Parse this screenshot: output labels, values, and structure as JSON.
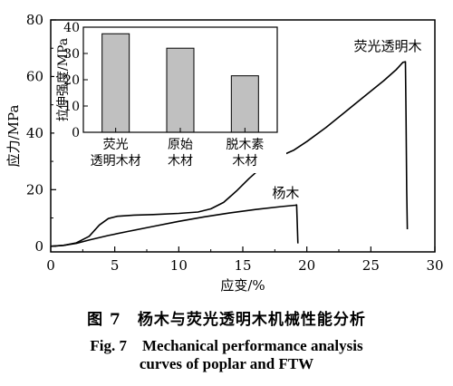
{
  "chart_data": [
    {
      "type": "line",
      "xlabel": "应变/%",
      "ylabel": "应力/MPa",
      "xlim": [
        0,
        30
      ],
      "ylim": [
        -2,
        80
      ],
      "xticks": [
        0,
        5,
        10,
        15,
        20,
        25,
        30
      ],
      "yticks": [
        0,
        20,
        40,
        60,
        80
      ],
      "grid": false,
      "series": [
        {
          "name": "荧光透明木",
          "color": "#000000",
          "points": [
            [
              0,
              0
            ],
            [
              1,
              0.3
            ],
            [
              2,
              1.2
            ],
            [
              3,
              3.5
            ],
            [
              3.8,
              7.5
            ],
            [
              4.5,
              9.8
            ],
            [
              5.2,
              10.6
            ],
            [
              6.5,
              11
            ],
            [
              8,
              11.2
            ],
            [
              10,
              11.6
            ],
            [
              11.5,
              12.1
            ],
            [
              12.5,
              13.2
            ],
            [
              13.5,
              15.5
            ],
            [
              14.5,
              19.5
            ],
            [
              15.5,
              24
            ],
            [
              16.5,
              28
            ],
            [
              17.5,
              31
            ],
            [
              19,
              34
            ],
            [
              20,
              37
            ],
            [
              21.5,
              42
            ],
            [
              23,
              47.5
            ],
            [
              24.5,
              53
            ],
            [
              26,
              58.5
            ],
            [
              27,
              62.5
            ],
            [
              27.5,
              65
            ],
            [
              27.7,
              65.2
            ],
            [
              27.75,
              45
            ],
            [
              27.8,
              20
            ],
            [
              27.85,
              6
            ]
          ]
        },
        {
          "name": "杨木",
          "color": "#000000",
          "points": [
            [
              0,
              0
            ],
            [
              1,
              0.3
            ],
            [
              2,
              1
            ],
            [
              3,
              2.2
            ],
            [
              4.5,
              3.8
            ],
            [
              6,
              5.2
            ],
            [
              8,
              7
            ],
            [
              10,
              8.8
            ],
            [
              12,
              10.4
            ],
            [
              14,
              11.8
            ],
            [
              16,
              13
            ],
            [
              18,
              14
            ],
            [
              19.1,
              14.5
            ],
            [
              19.2,
              14.6
            ],
            [
              19.25,
              8
            ],
            [
              19.3,
              1
            ]
          ]
        }
      ]
    },
    {
      "type": "bar",
      "title": "",
      "ylabel": "拉伸强度/MPa",
      "categories": [
        "荧光透明木材",
        "原始木材",
        "脱木素木材"
      ],
      "category_lines": [
        [
          "荧光",
          "透明木材"
        ],
        [
          "原始",
          "木材"
        ],
        [
          "脱木素",
          "木材"
        ]
      ],
      "values": [
        37.5,
        32,
        21.5
      ],
      "ylim": [
        0,
        40
      ],
      "yticks": [
        0,
        10,
        20,
        30,
        40
      ],
      "bar_color": "#c0c0c0",
      "grid": false
    }
  ],
  "caption": {
    "cn": "图 7　杨木与荧光透明木机械性能分析",
    "en_line1": "Fig. 7　Mechanical performance analysis",
    "en_line2": "curves of poplar and FTW"
  }
}
